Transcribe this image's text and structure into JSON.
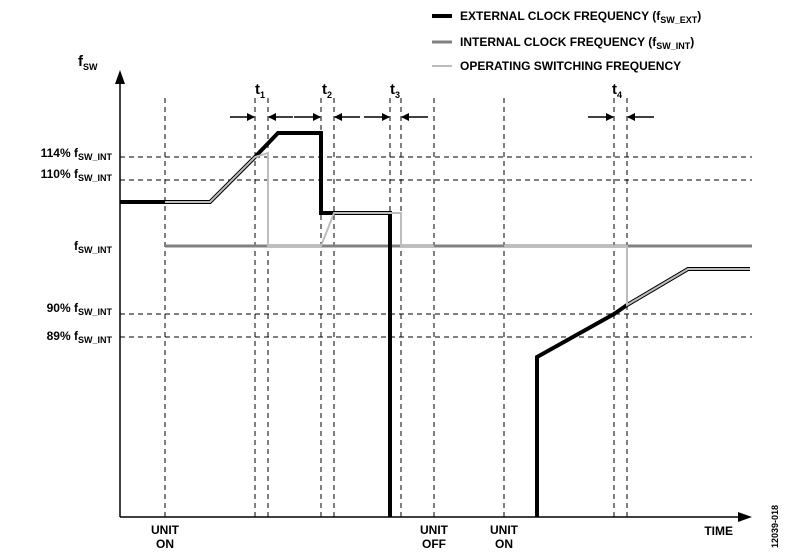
{
  "axis": {
    "y_label_main": "f",
    "y_label_sub": "SW",
    "x_label": "TIME"
  },
  "legend": {
    "external": {
      "main": "EXTERNAL CLOCK FREQUENCY (f",
      "sub": "SW_EXT",
      "end": ")",
      "color": "#000000"
    },
    "internal": {
      "main": "INTERNAL CLOCK FREQUENCY (f",
      "sub": "SW_INT",
      "end": ")",
      "color": "#808080"
    },
    "operating": {
      "main": "OPERATING SWITCHING FREQUENCY",
      "color": "#bdbdbd"
    }
  },
  "levels": {
    "l114": {
      "pct": "114% f",
      "sub": "SW_INT"
    },
    "l110": {
      "pct": "110% f",
      "sub": "SW_INT"
    },
    "lnom": {
      "pct": "f",
      "sub": "SW_INT"
    },
    "l90": {
      "pct": "90% f",
      "sub": "SW_INT"
    },
    "l89": {
      "pct": "89% f",
      "sub": "SW_INT"
    }
  },
  "intervals": {
    "t1": {
      "main": "t",
      "sub": "1"
    },
    "t2": {
      "main": "t",
      "sub": "2"
    },
    "t3": {
      "main": "t",
      "sub": "3"
    },
    "t4": {
      "main": "t",
      "sub": "4"
    }
  },
  "events": {
    "unit_on_1": {
      "line1": "UNIT",
      "line2": "ON"
    },
    "unit_off": {
      "line1": "UNIT",
      "line2": "OFF"
    },
    "unit_on_2": {
      "line1": "UNIT",
      "line2": "ON"
    }
  },
  "figure_id": "12039-018"
}
